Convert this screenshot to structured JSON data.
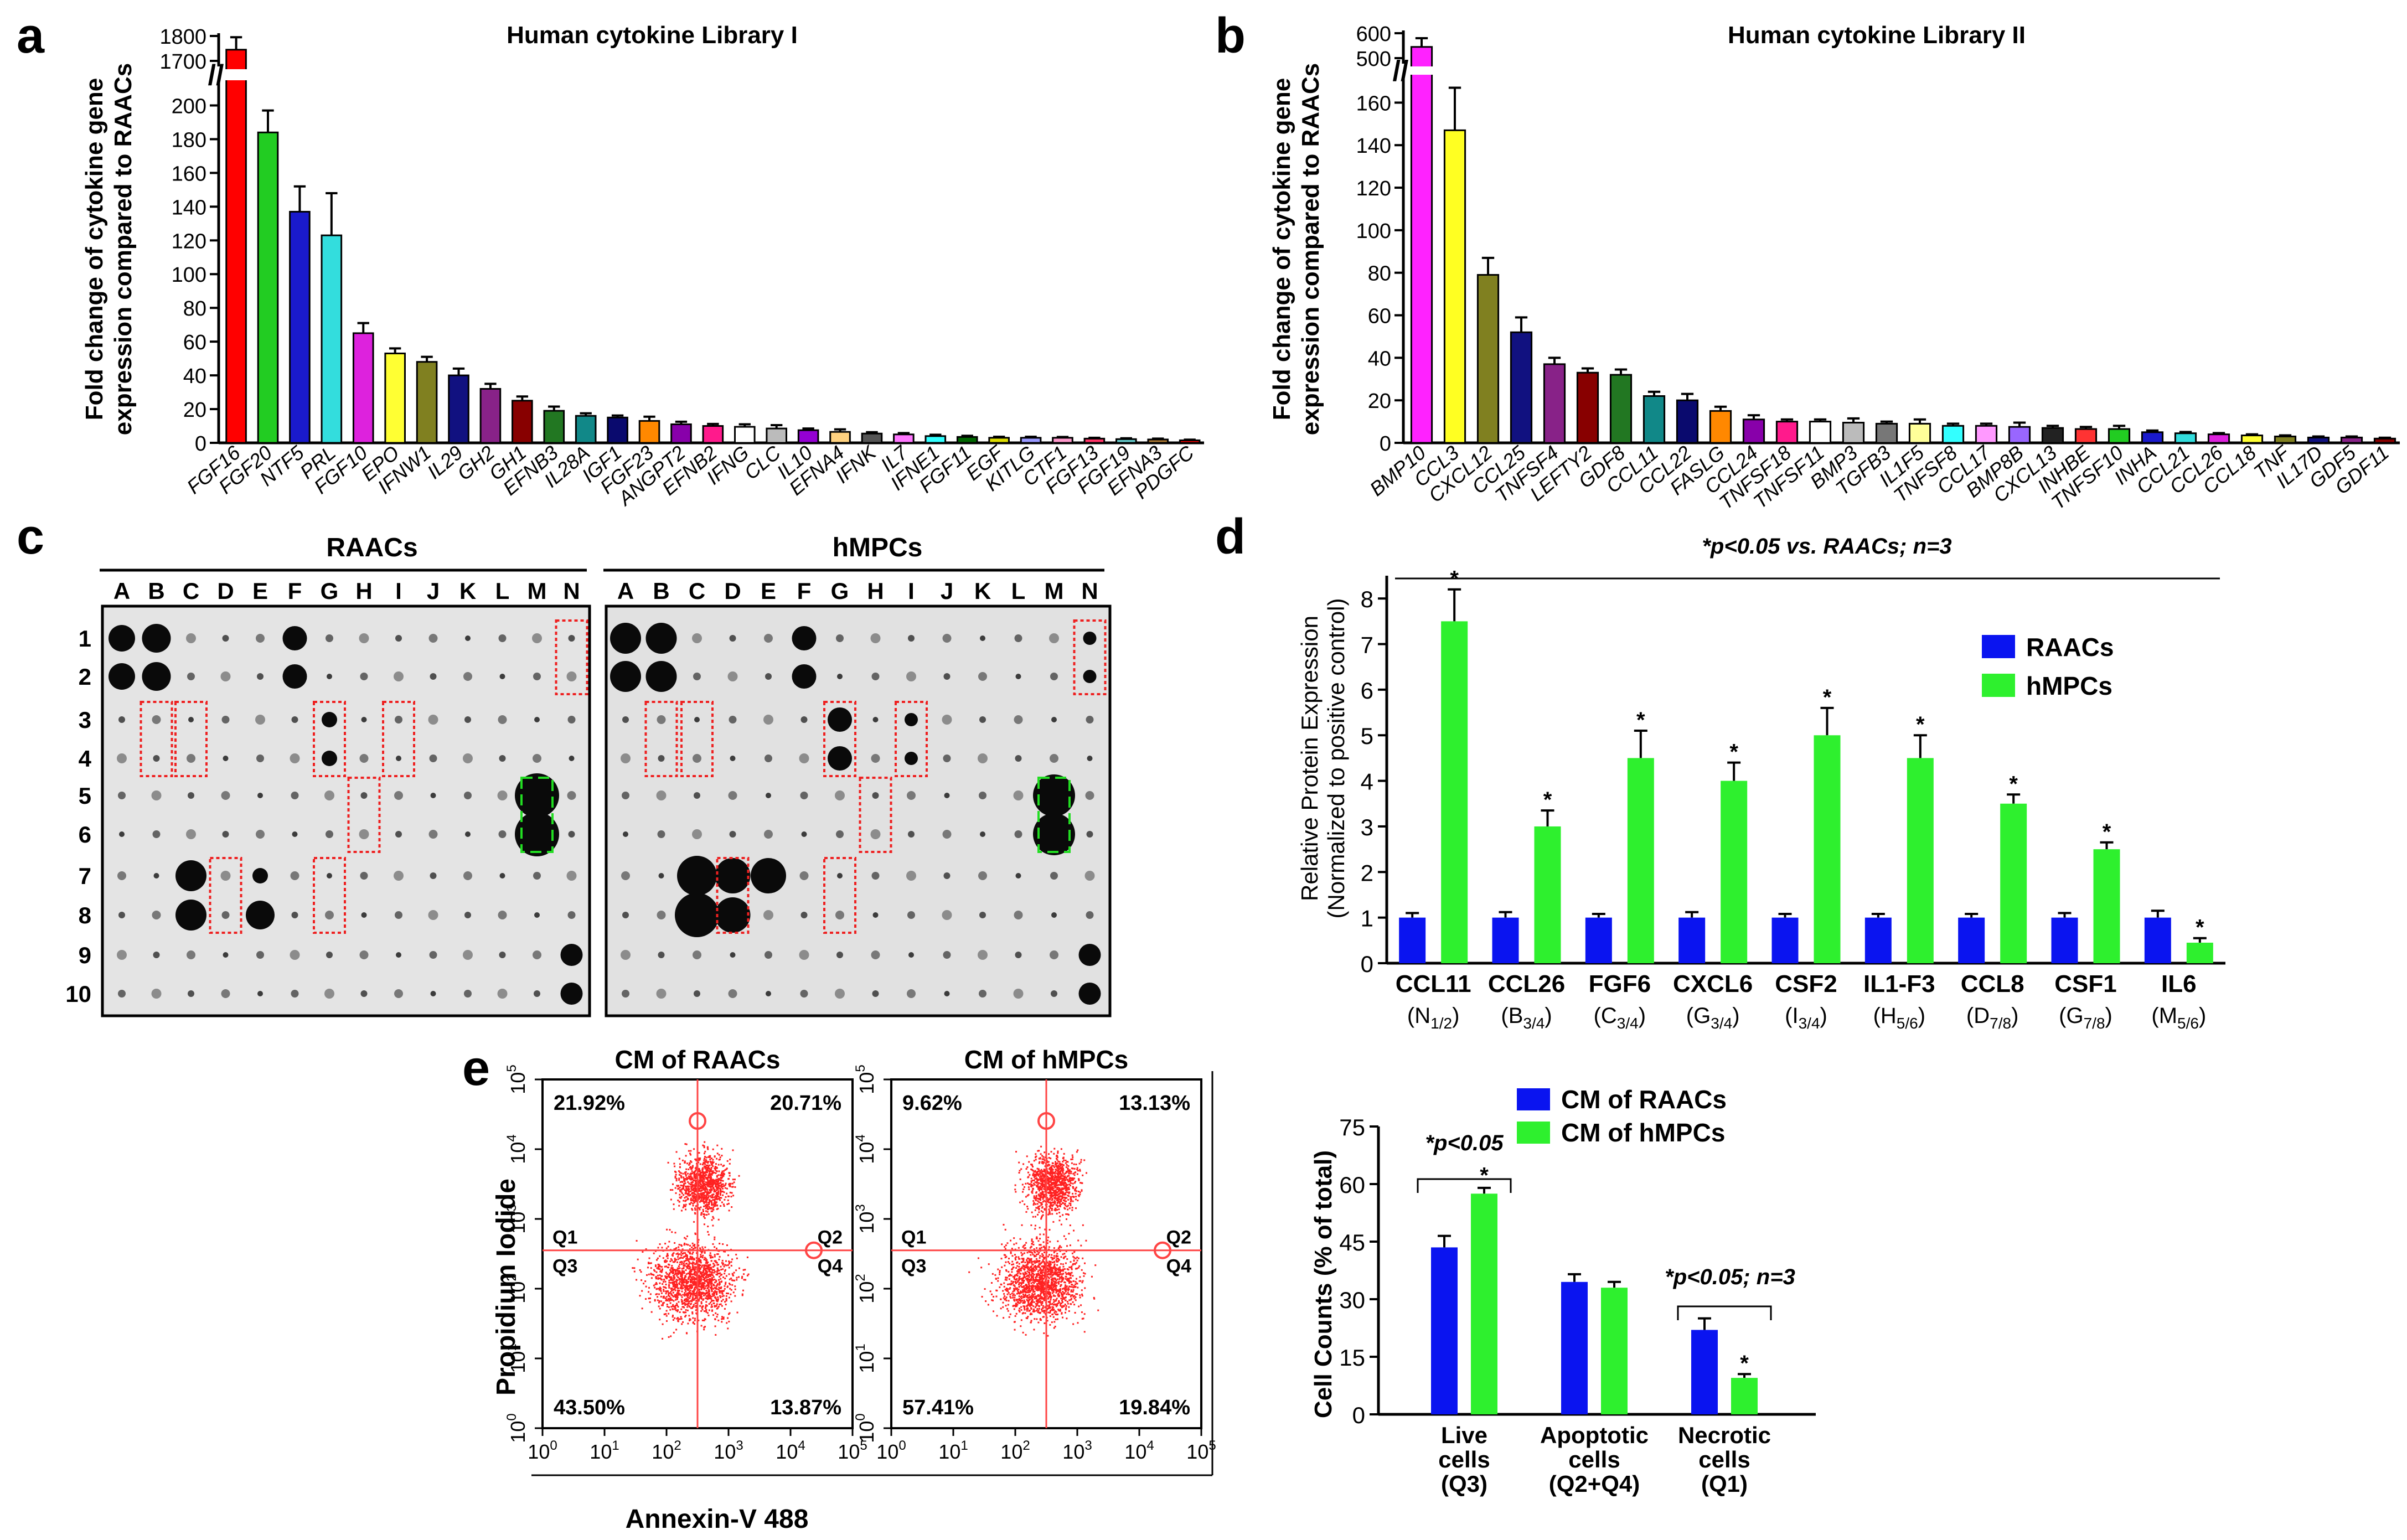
{
  "colors": {
    "raacs": "#0a14f0",
    "hmpcs": "#2ef02e",
    "panel_a": [
      "#ff0000",
      "#22cc22",
      "#1a1acc",
      "#33dddd",
      "#dd22dd",
      "#ffff33",
      "#808020",
      "#111180",
      "#882288",
      "#880000",
      "#227722",
      "#118888",
      "#0a0a6e",
      "#ff8800",
      "#8800aa",
      "#ff1a8c",
      "#ffffff",
      "#bbbbbb",
      "#9400d3",
      "#ffd280",
      "#555555",
      "#ff77ff",
      "#33ffff",
      "#006600",
      "#dddd00",
      "#9999ff",
      "#ff99cc",
      "#ff3366",
      "#66cccc",
      "#aa7733"
    ],
    "panel_b": [
      "#ff22ff",
      "#ffff22",
      "#808020",
      "#111180",
      "#882288",
      "#880000",
      "#227722",
      "#118888",
      "#0a0a6e",
      "#ff8800",
      "#8800aa",
      "#ff1a8c",
      "#ffffff",
      "#bbbbbb",
      "#777777",
      "#ffff99",
      "#33ffff",
      "#ff99ff",
      "#9966ff",
      "#222222",
      "#ff3333",
      "#22cc22",
      "#1a1acc",
      "#33dddd",
      "#dd22dd",
      "#ffff33",
      "#808020",
      "#111180",
      "#882288",
      "#880000"
    ]
  },
  "chart_data": [
    {
      "panel": "a",
      "type": "bar",
      "title": "Human cytokine Library I",
      "ylabel": [
        "Fold change of cytokine gene",
        "expression compared to RAACs"
      ],
      "ylim": [
        0,
        210
      ],
      "yticks": [
        "0",
        "20",
        "40",
        "60",
        "80",
        "100",
        "120",
        "140",
        "160",
        "180",
        "200"
      ],
      "ybreak_ticks": [
        "1700",
        "1800"
      ],
      "categories": [
        "FGF16",
        "FGF20",
        "NTF5",
        "PRL",
        "FGF10",
        "EPO",
        "IFNW1",
        "IL29",
        "GH2",
        "GH1",
        "EFNB3",
        "IL28A",
        "IGF1",
        "FGF23",
        "ANGPT2",
        "EFNB2",
        "IFNG",
        "CLC",
        "IL10",
        "EFNA4",
        "IFNK",
        "IL7",
        "IFNE1",
        "FGF11",
        "EGF",
        "KITLG",
        "CTF1",
        "FGF13",
        "FGF19",
        "EFNA3",
        "PDGFC"
      ],
      "values": [
        1745,
        184,
        137,
        123,
        65,
        53,
        48,
        40,
        32,
        25,
        19,
        16,
        15,
        13,
        11,
        10,
        9.5,
        8.5,
        7.5,
        6.5,
        5.5,
        5,
        4,
        3.5,
        3,
        3,
        3,
        2.5,
        2.2,
        2,
        1.5
      ],
      "errors": [
        50,
        13,
        15,
        25,
        6,
        3,
        3,
        4,
        3,
        2.5,
        2.5,
        1.5,
        1.2,
        2.5,
        1.5,
        1.2,
        1.5,
        2,
        1,
        1.5,
        0.8,
        0.8,
        0.8,
        0.7,
        0.6,
        0.6,
        0.5,
        0.5,
        0.5,
        0.5,
        0.4
      ]
    },
    {
      "panel": "b",
      "type": "bar",
      "title": "Human cytokine Library II",
      "ylabel": [
        "Fold change of cytokine gene",
        "expression compared to RAACs"
      ],
      "ylim": [
        0,
        170
      ],
      "yticks": [
        "0",
        "20",
        "40",
        "60",
        "80",
        "100",
        "120",
        "140",
        "160"
      ],
      "ybreak_ticks": [
        "500",
        "600"
      ],
      "categories": [
        "BMP10",
        "CCL3",
        "CXCL12",
        "CCL25",
        "TNFSF4",
        "LEFTY2",
        "GDF8",
        "CCL11",
        "CCL22",
        "FASLG",
        "CCL24",
        "TNFSF18",
        "TNFSF11",
        "BMP3",
        "TGFB3",
        "IL1F5",
        "TNFSF8",
        "CCL17",
        "BMP8B",
        "CXCL13",
        "INHBE",
        "TNFSF10",
        "INHA",
        "CCL21",
        "CCL26",
        "CCL18",
        "TNF",
        "IL17D",
        "GDF5",
        "GDF11"
      ],
      "values": [
        545,
        147,
        79,
        52,
        37,
        33,
        32,
        22,
        20,
        15,
        11,
        10,
        10,
        9.5,
        9,
        9,
        8,
        8,
        7.5,
        7,
        6.5,
        6.5,
        5,
        4.5,
        4,
        3.5,
        3,
        2.5,
        2.5,
        2
      ],
      "errors": [
        35,
        20,
        8,
        7,
        3,
        2,
        2.5,
        2,
        3,
        2,
        2,
        1,
        1,
        2,
        1,
        2,
        1,
        1,
        2,
        1,
        1,
        1.5,
        0.8,
        0.6,
        0.6,
        0.5,
        0.5,
        0.5,
        0.5,
        0.4
      ]
    },
    {
      "panel": "d",
      "type": "bar",
      "significance": "*p<0.05 vs. RAACs;  n=3",
      "ylabel": [
        "Relative Protein Expression",
        "(Normalized to positive control)"
      ],
      "ylim": [
        0,
        8.5
      ],
      "yticks": [
        "0",
        "1",
        "2",
        "3",
        "4",
        "5",
        "6",
        "7",
        "8"
      ],
      "categories": [
        "CCL11",
        "CCL26",
        "FGF6",
        "CXCL6",
        "CSF2",
        "IL1-F3",
        "CCL8",
        "CSF1",
        "IL6"
      ],
      "positions": [
        [
          "N",
          "1/2"
        ],
        [
          "B",
          "3/4"
        ],
        [
          "C",
          "3/4"
        ],
        [
          "G",
          "3/4"
        ],
        [
          "I",
          "3/4"
        ],
        [
          "H",
          "5/6"
        ],
        [
          "D",
          "7/8"
        ],
        [
          "G",
          "7/8"
        ],
        [
          "M",
          "5/6"
        ]
      ],
      "legend": [
        "RAACs",
        "hMPCs"
      ],
      "series": [
        {
          "name": "RAACs",
          "values": [
            1,
            1,
            1,
            1,
            1,
            1,
            1,
            1,
            1
          ],
          "errors": [
            0.1,
            0.12,
            0.08,
            0.12,
            0.08,
            0.08,
            0.08,
            0.1,
            0.15
          ]
        },
        {
          "name": "hMPCs",
          "values": [
            7.5,
            3,
            4.5,
            4,
            5,
            4.5,
            3.5,
            2.5,
            0.45
          ],
          "errors": [
            0.7,
            0.35,
            0.6,
            0.4,
            0.6,
            0.5,
            0.2,
            0.15,
            0.1
          ]
        }
      ]
    },
    {
      "panel": "e",
      "type": "bar",
      "ylabel": "Cell Counts (% of total)",
      "ylim": [
        0,
        75
      ],
      "yticks": [
        "0",
        "15",
        "30",
        "45",
        "60",
        "75"
      ],
      "categories": [
        [
          "Live",
          "cells",
          "(Q3)"
        ],
        [
          "Apoptotic",
          "cells",
          "(Q2+Q4)"
        ],
        [
          "Necrotic",
          "cells",
          "(Q1)"
        ]
      ],
      "legend": [
        "CM of RAACs",
        "CM of hMPCs"
      ],
      "annotations": [
        "*p<0.05",
        "*p<0.05; n=3"
      ],
      "series": [
        {
          "name": "CM of RAACs",
          "values": [
            43.5,
            34.5,
            22
          ],
          "errors": [
            3,
            2,
            3
          ]
        },
        {
          "name": "CM of hMPCs",
          "values": [
            57.5,
            33,
            9.5
          ],
          "errors": [
            1.5,
            1.5,
            1
          ]
        }
      ]
    },
    {
      "panel": "e",
      "type": "scatter",
      "plots": [
        {
          "title": "CM of RAACs",
          "quadrants": {
            "Q1": "21.92%",
            "Q2": "20.71%",
            "Q3": "43.50%",
            "Q4": "13.87%"
          }
        },
        {
          "title": "CM of hMPCs",
          "quadrants": {
            "Q1": "9.62%",
            "Q2": "13.13%",
            "Q3": "57.41%",
            "Q4": "19.84%"
          }
        }
      ],
      "quadrant_labels": [
        "Q1",
        "Q2",
        "Q3",
        "Q4"
      ],
      "xlabel": "Annexin-V 488",
      "ylabel": "Propidium Iodide",
      "axis_tick_bases": [
        "10",
        "10",
        "10",
        "10",
        "10",
        "10"
      ],
      "axis_tick_exponents": [
        "0",
        "1",
        "2",
        "3",
        "4",
        "5"
      ]
    }
  ],
  "panel_c": {
    "labels": [
      "RAACs",
      "hMPCs"
    ],
    "columns": [
      "A",
      "B",
      "C",
      "D",
      "E",
      "F",
      "G",
      "H",
      "I",
      "J",
      "K",
      "L",
      "M",
      "N"
    ],
    "rows": [
      "1",
      "2",
      "3",
      "4",
      "5",
      "6",
      "7",
      "8",
      "9",
      "10"
    ]
  },
  "panel_letters": [
    "a",
    "b",
    "c",
    "d",
    "e"
  ],
  "significance_mark": "*",
  "axis_break": "//"
}
